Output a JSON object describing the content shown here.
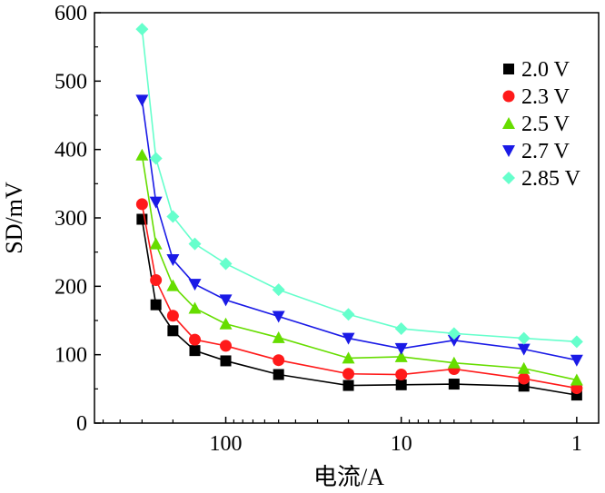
{
  "chart_data": {
    "type": "line",
    "xlabel": "电流/A",
    "ylabel": "SD/mV",
    "xscale": "log",
    "x_reversed": true,
    "xlim": [
      0.75,
      560
    ],
    "ylim": [
      0,
      600
    ],
    "yticks": [
      "0",
      "100",
      "200",
      "300",
      "400",
      "500",
      "600"
    ],
    "xticks": [
      {
        "value": 100,
        "label": "100"
      },
      {
        "value": 10,
        "label": "10"
      },
      {
        "value": 1,
        "label": "1"
      }
    ],
    "grid": false,
    "legend_position": "top-right",
    "x": [
      300,
      250,
      200,
      150,
      100,
      50,
      20,
      10,
      5,
      2,
      1
    ],
    "series": [
      {
        "name": "2.0 V",
        "color": "#000000",
        "marker": "square",
        "values": [
          298,
          173,
          135,
          106,
          91,
          71,
          55,
          56,
          57,
          54,
          41
        ]
      },
      {
        "name": "2.3 V",
        "color": "#ff1a1a",
        "marker": "circle",
        "values": [
          320,
          209,
          157,
          122,
          113,
          92,
          72,
          71,
          79,
          65,
          51
        ]
      },
      {
        "name": "2.5 V",
        "color": "#66dd00",
        "marker": "triangle-up",
        "values": [
          392,
          262,
          201,
          168,
          145,
          125,
          95,
          97,
          88,
          80,
          63
        ]
      },
      {
        "name": "2.7 V",
        "color": "#1a1ae6",
        "marker": "triangle-down",
        "values": [
          472,
          323,
          239,
          203,
          180,
          156,
          124,
          109,
          121,
          108,
          92
        ]
      },
      {
        "name": "2.85 V",
        "color": "#66ffcc",
        "marker": "diamond",
        "values": [
          576,
          387,
          302,
          262,
          233,
          195,
          159,
          138,
          131,
          124,
          119
        ]
      }
    ]
  }
}
